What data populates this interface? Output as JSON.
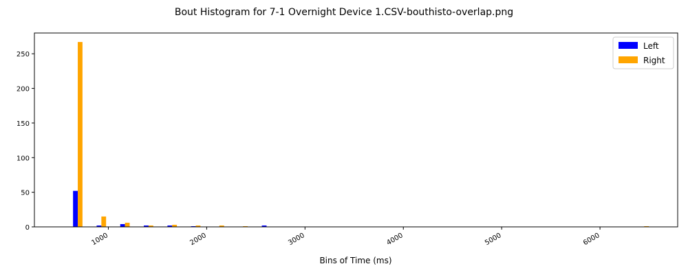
{
  "chart_data": {
    "type": "bar",
    "title": "Bout Histogram for 7-1 Overnight Device 1.CSV-bouthisto-overlap.png",
    "xlabel": "Bins of Time (ms)",
    "ylabel": "",
    "bin_centers": [
      689,
      929,
      1169,
      1409,
      1649,
      1889,
      2129,
      2369,
      2609,
      6449
    ],
    "series": [
      {
        "name": "Left",
        "color": "#0000ff",
        "values": [
          52,
          2,
          4,
          2,
          2,
          1,
          0,
          0,
          2,
          0
        ]
      },
      {
        "name": "Right",
        "color": "#ffa500",
        "values": [
          267,
          15,
          6,
          2,
          3,
          2,
          2,
          1,
          0,
          1
        ]
      }
    ],
    "bar_width": 96,
    "xlim": [
      248,
      6790
    ],
    "ylim": [
      0,
      280
    ],
    "xticks": [
      1000,
      2000,
      3000,
      4000,
      5000,
      6000
    ],
    "yticks": [
      0,
      50,
      100,
      150,
      200,
      250
    ],
    "grid": false,
    "legend": "top-right"
  }
}
